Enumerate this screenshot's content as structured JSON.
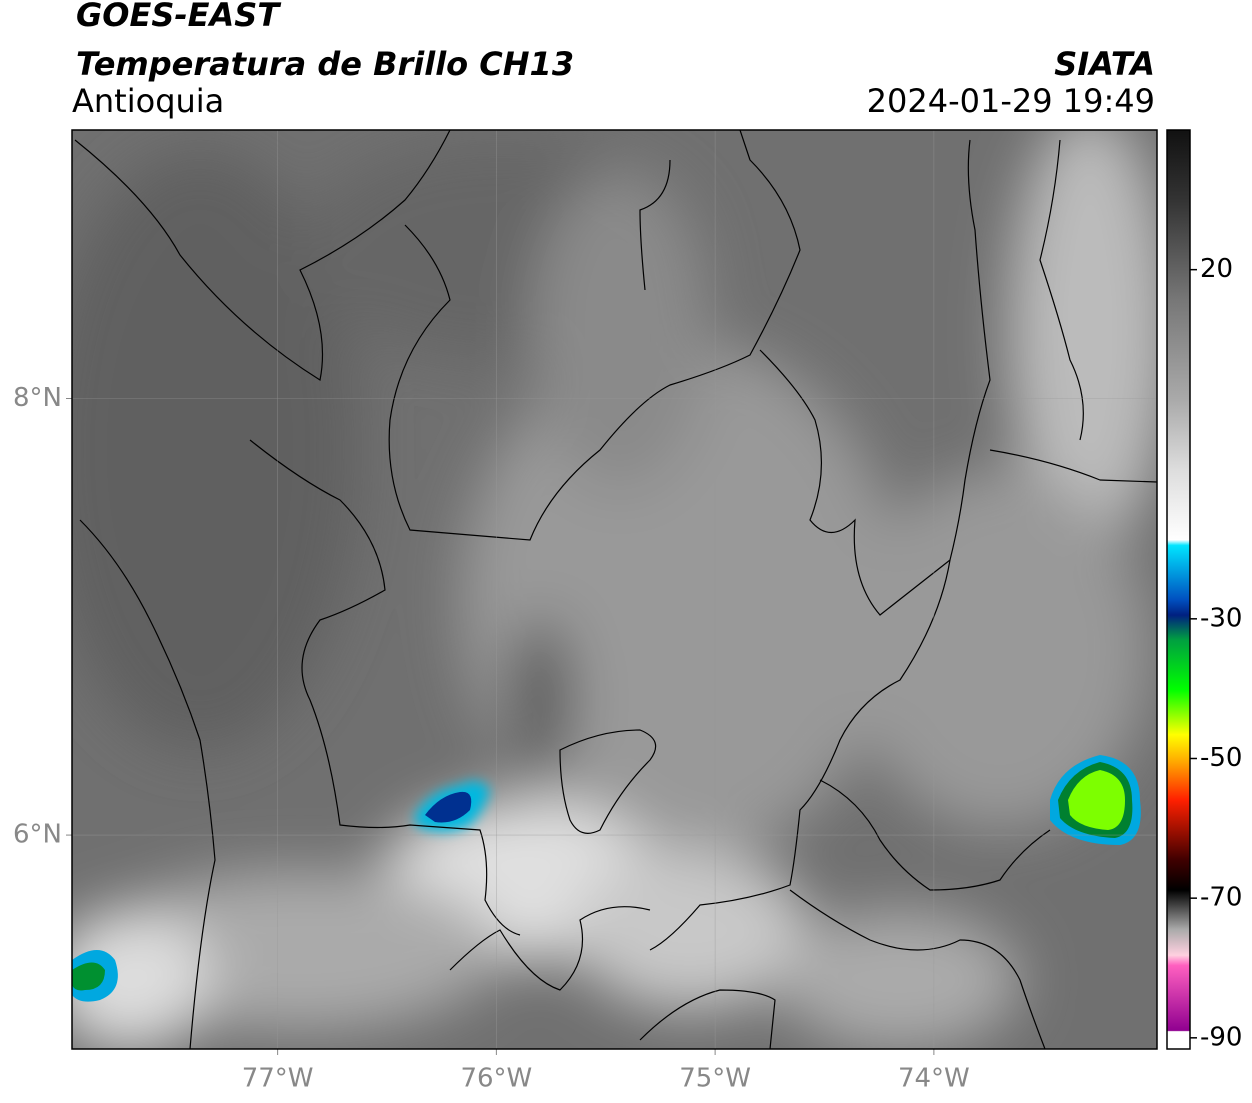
{
  "header": {
    "title": "GOES-EAST",
    "subtitle": "Temperatura de Brillo CH13",
    "region": "Antioquia",
    "source": "SIATA",
    "datetime": "2024-01-29 19:49"
  },
  "map": {
    "lonlim": [
      -77.94,
      -72.98
    ],
    "latlim": [
      5.02,
      9.23
    ],
    "lon_ticks": [
      {
        "value": -77,
        "label": "77°W"
      },
      {
        "value": -76,
        "label": "76°W"
      },
      {
        "value": -75,
        "label": "75°W"
      },
      {
        "value": -74,
        "label": "74°W"
      }
    ],
    "lat_ticks": [
      {
        "value": 8,
        "label": "8°N"
      },
      {
        "value": 6,
        "label": "6°N"
      }
    ]
  },
  "colorbar": {
    "lim": [
      -91.6,
      40
    ],
    "ticks": [
      20,
      -30,
      -50,
      -70,
      -90
    ]
  }
}
